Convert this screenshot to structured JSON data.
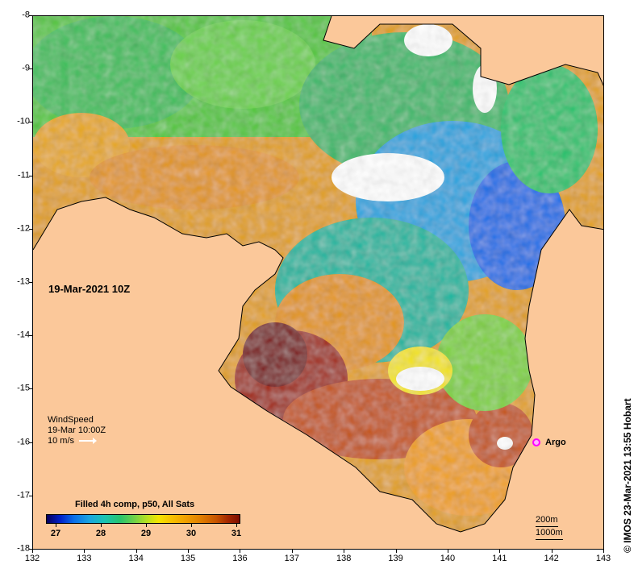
{
  "map": {
    "datetime_label": "19-Mar-2021 10Z",
    "x_ticks": [
      "132",
      "133",
      "134",
      "135",
      "136",
      "137",
      "138",
      "139",
      "140",
      "141",
      "142",
      "143"
    ],
    "y_ticks": [
      "-8",
      "-9",
      "-10",
      "-11",
      "-12",
      "-13",
      "-14",
      "-15",
      "-16",
      "-17",
      "-18"
    ],
    "colors": {
      "land": "#fbc89a",
      "nodata": "#ffffff"
    }
  },
  "wind": {
    "title": "WindSpeed",
    "time": "19-Mar 10:00Z",
    "scale": "10 m/s"
  },
  "legend": {
    "title": "Filled 4h comp, p50, All Sats",
    "labels": [
      "27",
      "28",
      "29",
      "30",
      "31"
    ],
    "colors": [
      "#06005e",
      "#0a6ee8",
      "#19c3b2",
      "#6bd14a",
      "#f4e500",
      "#f0a000",
      "#c65400",
      "#7c0d00"
    ]
  },
  "argo": {
    "label": "Argo",
    "color": "#ff00ff"
  },
  "isobaths": {
    "shallow": "200m",
    "deep": "1000m"
  },
  "credit": "© IMOS 23-Mar-2021 13:55 Hobart"
}
